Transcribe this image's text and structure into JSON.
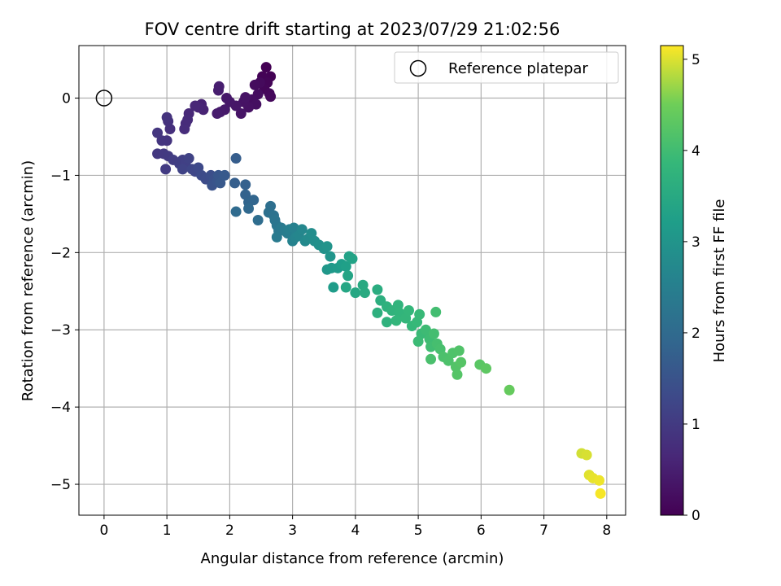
{
  "chart_data": {
    "type": "scatter",
    "title": "FOV centre drift starting at 2023/07/29 21:02:56",
    "xlabel": "Angular distance from reference (arcmin)",
    "ylabel": "Rotation from reference (arcmin)",
    "xlim": [
      -0.4,
      8.3
    ],
    "ylim": [
      -5.4,
      0.68
    ],
    "xticks": [
      0,
      1,
      2,
      3,
      4,
      5,
      6,
      7,
      8
    ],
    "yticks": [
      0,
      -1,
      -2,
      -3,
      -4,
      -5
    ],
    "xtick_labels": [
      "0",
      "1",
      "2",
      "3",
      "4",
      "5",
      "6",
      "7",
      "8"
    ],
    "ytick_labels": [
      "0",
      "−1",
      "−2",
      "−3",
      "−4",
      "−5"
    ],
    "grid": true,
    "legend": {
      "position": "top-right",
      "entries": [
        {
          "label": "Reference platepar",
          "marker": "hollow-circle"
        }
      ]
    },
    "reference_point": {
      "x": 0,
      "y": 0
    },
    "colorbar": {
      "label": "Hours from first FF file",
      "colormap": "viridis",
      "range": [
        0,
        5.15
      ],
      "ticks": [
        0,
        1,
        2,
        3,
        4,
        5
      ],
      "tick_labels": [
        "0",
        "1",
        "2",
        "3",
        "4",
        "5"
      ]
    },
    "points": [
      {
        "x": 2.58,
        "y": 0.4,
        "c": 0.0
      },
      {
        "x": 2.65,
        "y": 0.28,
        "c": 0.02
      },
      {
        "x": 2.52,
        "y": 0.28,
        "c": 0.04
      },
      {
        "x": 2.6,
        "y": 0.2,
        "c": 0.06
      },
      {
        "x": 2.55,
        "y": 0.12,
        "c": 0.08
      },
      {
        "x": 2.63,
        "y": 0.06,
        "c": 0.1
      },
      {
        "x": 2.65,
        "y": 0.02,
        "c": 0.12
      },
      {
        "x": 2.48,
        "y": 0.2,
        "c": 0.15
      },
      {
        "x": 2.4,
        "y": 0.17,
        "c": 0.18
      },
      {
        "x": 2.45,
        "y": 0.05,
        "c": 0.2
      },
      {
        "x": 2.35,
        "y": -0.02,
        "c": 0.22
      },
      {
        "x": 2.42,
        "y": -0.08,
        "c": 0.24
      },
      {
        "x": 2.3,
        "y": -0.12,
        "c": 0.26
      },
      {
        "x": 2.22,
        "y": -0.05,
        "c": 0.28
      },
      {
        "x": 2.25,
        "y": 0.01,
        "c": 0.3
      },
      {
        "x": 2.18,
        "y": -0.2,
        "c": 0.32
      },
      {
        "x": 2.1,
        "y": -0.1,
        "c": 0.34
      },
      {
        "x": 2.0,
        "y": -0.05,
        "c": 0.36
      },
      {
        "x": 1.95,
        "y": 0.0,
        "c": 0.38
      },
      {
        "x": 1.92,
        "y": -0.15,
        "c": 0.4
      },
      {
        "x": 1.85,
        "y": -0.18,
        "c": 0.42
      },
      {
        "x": 1.8,
        "y": -0.2,
        "c": 0.44
      },
      {
        "x": 1.82,
        "y": 0.1,
        "c": 0.46
      },
      {
        "x": 1.83,
        "y": 0.15,
        "c": 0.48
      },
      {
        "x": 1.55,
        "y": -0.08,
        "c": 0.55
      },
      {
        "x": 1.58,
        "y": -0.15,
        "c": 0.58
      },
      {
        "x": 1.5,
        "y": -0.12,
        "c": 0.6
      },
      {
        "x": 1.45,
        "y": -0.1,
        "c": 0.62
      },
      {
        "x": 1.35,
        "y": -0.2,
        "c": 0.66
      },
      {
        "x": 1.33,
        "y": -0.28,
        "c": 0.7
      },
      {
        "x": 1.3,
        "y": -0.33,
        "c": 0.72
      },
      {
        "x": 1.28,
        "y": -0.4,
        "c": 0.74
      },
      {
        "x": 1.05,
        "y": -0.4,
        "c": 0.8
      },
      {
        "x": 1.02,
        "y": -0.3,
        "c": 0.82
      },
      {
        "x": 1.0,
        "y": -0.25,
        "c": 0.85
      },
      {
        "x": 1.0,
        "y": -0.55,
        "c": 0.88
      },
      {
        "x": 0.92,
        "y": -0.55,
        "c": 0.9
      },
      {
        "x": 0.85,
        "y": -0.45,
        "c": 0.92
      },
      {
        "x": 0.85,
        "y": -0.72,
        "c": 0.95
      },
      {
        "x": 0.95,
        "y": -0.72,
        "c": 0.98
      },
      {
        "x": 1.02,
        "y": -0.75,
        "c": 1.0
      },
      {
        "x": 0.98,
        "y": -0.92,
        "c": 1.02
      },
      {
        "x": 1.1,
        "y": -0.8,
        "c": 1.05
      },
      {
        "x": 1.2,
        "y": -0.85,
        "c": 1.08
      },
      {
        "x": 1.25,
        "y": -0.8,
        "c": 1.1
      },
      {
        "x": 1.3,
        "y": -0.83,
        "c": 1.12
      },
      {
        "x": 1.35,
        "y": -0.78,
        "c": 1.15
      },
      {
        "x": 1.25,
        "y": -0.92,
        "c": 1.18
      },
      {
        "x": 1.4,
        "y": -0.92,
        "c": 1.22
      },
      {
        "x": 1.45,
        "y": -0.95,
        "c": 1.25
      },
      {
        "x": 1.5,
        "y": -0.9,
        "c": 1.28
      },
      {
        "x": 1.55,
        "y": -1.0,
        "c": 1.32
      },
      {
        "x": 1.62,
        "y": -1.05,
        "c": 1.36
      },
      {
        "x": 1.7,
        "y": -1.0,
        "c": 1.4
      },
      {
        "x": 1.75,
        "y": -1.05,
        "c": 1.44
      },
      {
        "x": 1.72,
        "y": -1.13,
        "c": 1.48
      },
      {
        "x": 1.8,
        "y": -1.08,
        "c": 1.52
      },
      {
        "x": 1.82,
        "y": -1.0,
        "c": 1.56
      },
      {
        "x": 1.85,
        "y": -1.1,
        "c": 1.6
      },
      {
        "x": 1.92,
        "y": -1.0,
        "c": 1.64
      },
      {
        "x": 2.1,
        "y": -0.78,
        "c": 1.7
      },
      {
        "x": 2.08,
        "y": -1.1,
        "c": 1.72
      },
      {
        "x": 2.25,
        "y": -1.12,
        "c": 1.78
      },
      {
        "x": 2.25,
        "y": -1.25,
        "c": 1.82
      },
      {
        "x": 2.3,
        "y": -1.35,
        "c": 1.86
      },
      {
        "x": 2.38,
        "y": -1.32,
        "c": 1.9
      },
      {
        "x": 2.3,
        "y": -1.43,
        "c": 1.95
      },
      {
        "x": 2.1,
        "y": -1.47,
        "c": 2.0
      },
      {
        "x": 2.45,
        "y": -1.58,
        "c": 2.05
      },
      {
        "x": 2.65,
        "y": -1.4,
        "c": 2.1
      },
      {
        "x": 2.62,
        "y": -1.48,
        "c": 2.14
      },
      {
        "x": 2.7,
        "y": -1.52,
        "c": 2.18
      },
      {
        "x": 2.72,
        "y": -1.58,
        "c": 2.22
      },
      {
        "x": 2.75,
        "y": -1.65,
        "c": 2.26
      },
      {
        "x": 2.78,
        "y": -1.72,
        "c": 2.3
      },
      {
        "x": 2.82,
        "y": -1.68,
        "c": 2.34
      },
      {
        "x": 2.75,
        "y": -1.8,
        "c": 2.38
      },
      {
        "x": 2.88,
        "y": -1.72,
        "c": 2.42
      },
      {
        "x": 2.92,
        "y": -1.75,
        "c": 2.46
      },
      {
        "x": 2.95,
        "y": -1.7,
        "c": 2.5
      },
      {
        "x": 3.02,
        "y": -1.68,
        "c": 2.54
      },
      {
        "x": 3.0,
        "y": -1.85,
        "c": 2.58
      },
      {
        "x": 3.05,
        "y": -1.8,
        "c": 2.62
      },
      {
        "x": 3.1,
        "y": -1.78,
        "c": 2.66
      },
      {
        "x": 3.15,
        "y": -1.7,
        "c": 2.7
      },
      {
        "x": 3.2,
        "y": -1.85,
        "c": 2.74
      },
      {
        "x": 3.25,
        "y": -1.82,
        "c": 2.78
      },
      {
        "x": 3.3,
        "y": -1.75,
        "c": 2.82
      },
      {
        "x": 3.35,
        "y": -1.85,
        "c": 2.86
      },
      {
        "x": 3.42,
        "y": -1.9,
        "c": 2.9
      },
      {
        "x": 3.5,
        "y": -1.95,
        "c": 2.94
      },
      {
        "x": 3.55,
        "y": -1.92,
        "c": 2.98
      },
      {
        "x": 3.6,
        "y": -2.05,
        "c": 3.02
      },
      {
        "x": 3.55,
        "y": -2.22,
        "c": 3.06
      },
      {
        "x": 3.62,
        "y": -2.2,
        "c": 3.1
      },
      {
        "x": 3.72,
        "y": -2.2,
        "c": 3.14
      },
      {
        "x": 3.65,
        "y": -2.45,
        "c": 3.18
      },
      {
        "x": 3.78,
        "y": -2.15,
        "c": 3.22
      },
      {
        "x": 3.85,
        "y": -2.18,
        "c": 3.26
      },
      {
        "x": 3.9,
        "y": -2.05,
        "c": 3.3
      },
      {
        "x": 3.95,
        "y": -2.08,
        "c": 3.34
      },
      {
        "x": 3.88,
        "y": -2.3,
        "c": 3.38
      },
      {
        "x": 3.85,
        "y": -2.45,
        "c": 3.42
      },
      {
        "x": 4.0,
        "y": -2.52,
        "c": 3.46
      },
      {
        "x": 4.12,
        "y": -2.42,
        "c": 3.5
      },
      {
        "x": 4.15,
        "y": -2.52,
        "c": 3.54
      },
      {
        "x": 4.35,
        "y": -2.48,
        "c": 3.58
      },
      {
        "x": 4.4,
        "y": -2.62,
        "c": 3.62
      },
      {
        "x": 4.35,
        "y": -2.78,
        "c": 3.66
      },
      {
        "x": 4.5,
        "y": -2.7,
        "c": 3.7
      },
      {
        "x": 4.5,
        "y": -2.9,
        "c": 3.72
      },
      {
        "x": 4.58,
        "y": -2.75,
        "c": 3.74
      },
      {
        "x": 4.68,
        "y": -2.68,
        "c": 3.76
      },
      {
        "x": 4.7,
        "y": -2.78,
        "c": 3.78
      },
      {
        "x": 4.65,
        "y": -2.88,
        "c": 3.8
      },
      {
        "x": 4.8,
        "y": -2.85,
        "c": 3.82
      },
      {
        "x": 4.85,
        "y": -2.75,
        "c": 3.84
      },
      {
        "x": 4.9,
        "y": -2.95,
        "c": 3.86
      },
      {
        "x": 4.98,
        "y": -2.9,
        "c": 3.88
      },
      {
        "x": 5.02,
        "y": -2.8,
        "c": 3.9
      },
      {
        "x": 5.05,
        "y": -3.05,
        "c": 3.92
      },
      {
        "x": 5.0,
        "y": -3.15,
        "c": 3.94
      },
      {
        "x": 5.12,
        "y": -3.0,
        "c": 3.96
      },
      {
        "x": 5.18,
        "y": -3.12,
        "c": 3.98
      },
      {
        "x": 5.2,
        "y": -3.22,
        "c": 4.0
      },
      {
        "x": 5.28,
        "y": -2.77,
        "c": 4.02
      },
      {
        "x": 5.25,
        "y": -3.05,
        "c": 4.04
      },
      {
        "x": 5.3,
        "y": -3.18,
        "c": 4.06
      },
      {
        "x": 5.35,
        "y": -3.25,
        "c": 4.08
      },
      {
        "x": 5.2,
        "y": -3.38,
        "c": 4.1
      },
      {
        "x": 5.4,
        "y": -3.35,
        "c": 4.12
      },
      {
        "x": 5.48,
        "y": -3.4,
        "c": 4.14
      },
      {
        "x": 5.55,
        "y": -3.3,
        "c": 4.16
      },
      {
        "x": 5.65,
        "y": -3.27,
        "c": 4.18
      },
      {
        "x": 5.6,
        "y": -3.48,
        "c": 4.2
      },
      {
        "x": 5.62,
        "y": -3.58,
        "c": 4.22
      },
      {
        "x": 5.68,
        "y": -3.42,
        "c": 4.24
      },
      {
        "x": 5.98,
        "y": -3.45,
        "c": 4.28
      },
      {
        "x": 6.08,
        "y": -3.5,
        "c": 4.32
      },
      {
        "x": 6.45,
        "y": -3.78,
        "c": 4.4
      },
      {
        "x": 7.6,
        "y": -4.6,
        "c": 4.95
      },
      {
        "x": 7.68,
        "y": -4.62,
        "c": 4.98
      },
      {
        "x": 7.72,
        "y": -4.88,
        "c": 5.02
      },
      {
        "x": 7.78,
        "y": -4.92,
        "c": 5.05
      },
      {
        "x": 7.88,
        "y": -4.95,
        "c": 5.08
      },
      {
        "x": 7.9,
        "y": -5.12,
        "c": 5.12
      }
    ]
  }
}
